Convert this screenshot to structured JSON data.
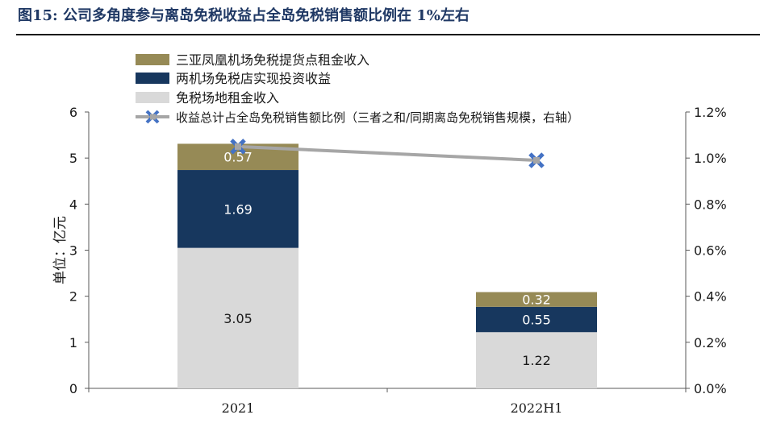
{
  "figure_label": "图15:",
  "figure_title": "公司多角度参与离岛免税收益占全岛免税销售额比例在 1%左右",
  "chart_data": {
    "type": "bar",
    "stacked": true,
    "categories": [
      "2021",
      "2022H1"
    ],
    "series": [
      {
        "name": "三亚凤凰机场免税提货点租金收入",
        "values": [
          0.57,
          0.32
        ],
        "color": "#968a56",
        "label_color": "#ffffff"
      },
      {
        "name": "两机场免税店实现投资收益",
        "values": [
          1.69,
          0.55
        ],
        "color": "#17375e",
        "label_color": "#ffffff"
      },
      {
        "name": "免税场地租金收入",
        "values": [
          3.05,
          1.22
        ],
        "color": "#d9d9d9",
        "label_color": "#1a1a1a"
      }
    ],
    "line_series": {
      "name": "收益总计占全岛免税销售额比例（三者之和/同期离岛免税销售规模，右轴）",
      "values": [
        1.05,
        0.99
      ],
      "axis": "right",
      "color": "#a6a6a6",
      "marker_color": "#4472c4"
    },
    "ylabel": "单位：亿元",
    "ylim": [
      0,
      6
    ],
    "yticks": [
      "0",
      "1",
      "2",
      "3",
      "4",
      "5",
      "6"
    ],
    "y2lim": [
      0,
      1.2
    ],
    "y2ticks": [
      "0.0%",
      "0.2%",
      "0.4%",
      "0.6%",
      "0.8%",
      "1.0%",
      "1.2%"
    ],
    "legend_position": "top-left",
    "grid": false
  }
}
